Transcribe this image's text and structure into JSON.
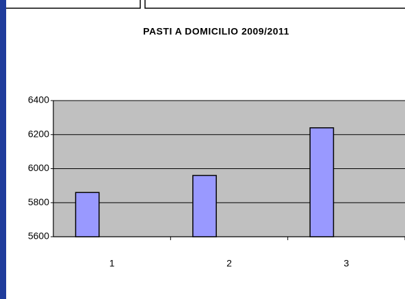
{
  "chart_data": {
    "type": "bar",
    "title": "PASTI A DOMICILIO 2009/2011",
    "categories": [
      "1",
      "2",
      "3"
    ],
    "values": [
      5860,
      5960,
      6240
    ],
    "color": "#9999ff",
    "ylim": [
      5600,
      6400
    ],
    "yticks": [
      5600,
      5800,
      6000,
      6200,
      6400
    ],
    "grid": true
  }
}
